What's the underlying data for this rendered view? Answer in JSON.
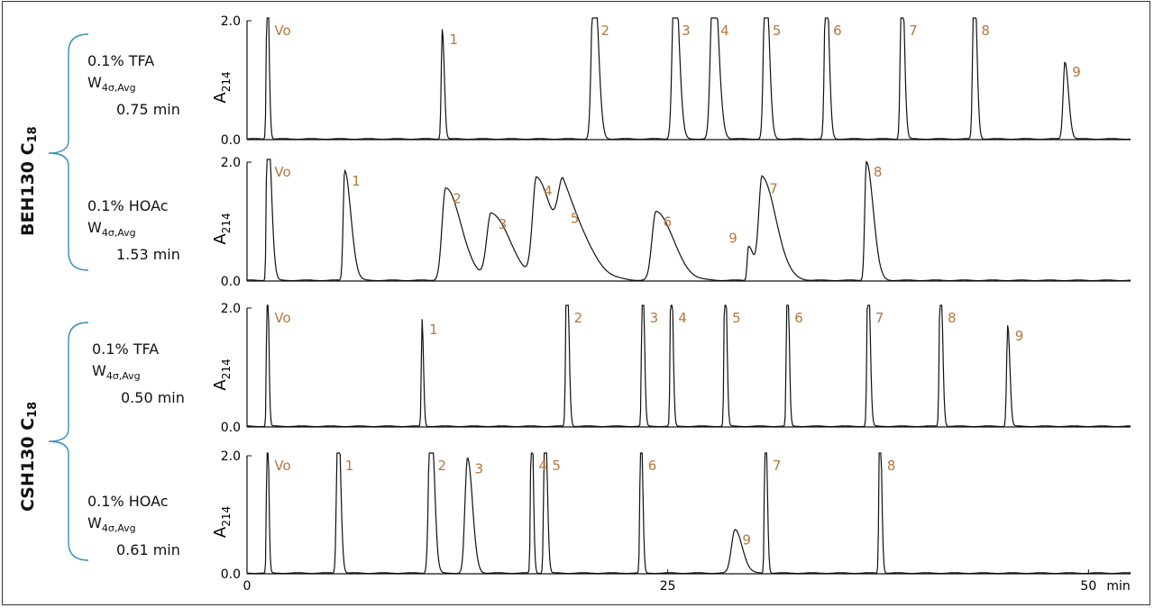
{
  "colors": {
    "trace": "#111111",
    "peak_label": "#b8763d",
    "brace": "#3b8fb5",
    "axis": "#111111"
  },
  "groups": [
    {
      "column": "BEH130 C",
      "subscript": "18"
    },
    {
      "column": "CSH130 C",
      "subscript": "18"
    }
  ],
  "conditions": [
    {
      "modifier": "0.1% TFA",
      "w_label": "W",
      "w_sub": "4σ,Avg",
      "width": "0.75 min"
    },
    {
      "modifier": "0.1% HOAc",
      "w_label": "W",
      "w_sub": "4σ,Avg",
      "width": "1.53 min"
    },
    {
      "modifier": "0.1% TFA",
      "w_label": "W",
      "w_sub": "4σ,Avg",
      "width": "0.50 min"
    },
    {
      "modifier": "0.1% HOAc",
      "w_label": "W",
      "w_sub": "4σ,Avg",
      "width": "0.61 min"
    }
  ],
  "chart_data": {
    "type": "line",
    "x_axis": {
      "xlim": [
        0,
        52.5
      ],
      "ticks": [
        "0",
        "25",
        "50"
      ],
      "unit_label": "min"
    },
    "y_axis": {
      "label": "A",
      "label_sub": "214",
      "ylim": [
        0,
        2.0
      ],
      "tick_labels": [
        "0.0",
        "2.0"
      ]
    },
    "panels": [
      {
        "name": "BEH130 C18 · 0.1% TFA",
        "peaks": [
          {
            "label": "Vo",
            "t": 1.2,
            "h": 3.0,
            "w": 0.12
          },
          {
            "label": "1",
            "t": 11.6,
            "h": 1.85,
            "w": 0.14
          },
          {
            "label": "2",
            "t": 20.6,
            "h": 3.0,
            "w": 0.3
          },
          {
            "label": "3",
            "t": 25.4,
            "h": 3.0,
            "w": 0.3
          },
          {
            "label": "4",
            "t": 27.7,
            "h": 3.0,
            "w": 0.35
          },
          {
            "label": "5",
            "t": 30.8,
            "h": 3.0,
            "w": 0.25
          },
          {
            "label": "6",
            "t": 34.4,
            "h": 3.0,
            "w": 0.2
          },
          {
            "label": "7",
            "t": 38.9,
            "h": 3.0,
            "w": 0.18
          },
          {
            "label": "8",
            "t": 43.2,
            "h": 3.0,
            "w": 0.18
          },
          {
            "label": "9",
            "t": 48.6,
            "h": 1.3,
            "w": 0.25
          }
        ]
      },
      {
        "name": "BEH130 C18 · 0.1% HOAc",
        "peaks": [
          {
            "label": "Vo",
            "t": 1.2,
            "h": 3.0,
            "w": 0.12
          },
          {
            "label": "1",
            "t": 5.8,
            "h": 1.85,
            "w": 0.2
          },
          {
            "label": "2",
            "t": 11.8,
            "h": 1.55,
            "w": 0.5
          },
          {
            "label": "3",
            "t": 14.5,
            "h": 1.12,
            "w": 0.6
          },
          {
            "label": "4",
            "t": 17.2,
            "h": 1.68,
            "w": 0.55
          },
          {
            "label": "5",
            "t": 18.8,
            "h": 1.22,
            "w": 0.7
          },
          {
            "label": "6",
            "t": 24.3,
            "h": 1.16,
            "w": 0.55
          },
          {
            "label": "9",
            "t": 29.8,
            "h": 0.58,
            "w": 0.18
          },
          {
            "label": "7",
            "t": 30.6,
            "h": 1.72,
            "w": 0.45
          },
          {
            "label": "8",
            "t": 36.8,
            "h": 2.0,
            "w": 0.22
          }
        ]
      },
      {
        "name": "CSH130 C18 · 0.1% TFA",
        "peaks": [
          {
            "label": "Vo",
            "t": 1.2,
            "h": 3.0,
            "w": 0.1
          },
          {
            "label": "1",
            "t": 10.4,
            "h": 1.8,
            "w": 0.1
          },
          {
            "label": "2",
            "t": 19.0,
            "h": 3.0,
            "w": 0.14
          },
          {
            "label": "3",
            "t": 23.5,
            "h": 3.0,
            "w": 0.12
          },
          {
            "label": "4",
            "t": 25.2,
            "h": 3.0,
            "w": 0.12
          },
          {
            "label": "5",
            "t": 28.4,
            "h": 3.0,
            "w": 0.12
          },
          {
            "label": "6",
            "t": 32.1,
            "h": 3.0,
            "w": 0.12
          },
          {
            "label": "7",
            "t": 36.9,
            "h": 3.0,
            "w": 0.14
          },
          {
            "label": "8",
            "t": 41.2,
            "h": 3.0,
            "w": 0.14
          },
          {
            "label": "9",
            "t": 45.2,
            "h": 1.7,
            "w": 0.15
          }
        ]
      },
      {
        "name": "CSH130 C18 · 0.1% HOAc",
        "peaks": [
          {
            "label": "Vo",
            "t": 1.2,
            "h": 3.0,
            "w": 0.1
          },
          {
            "label": "1",
            "t": 5.4,
            "h": 3.0,
            "w": 0.18
          },
          {
            "label": "2",
            "t": 10.9,
            "h": 3.0,
            "w": 0.25
          },
          {
            "label": "3",
            "t": 13.1,
            "h": 1.95,
            "w": 0.35
          },
          {
            "label": "4",
            "t": 16.9,
            "h": 3.0,
            "w": 0.12
          },
          {
            "label": "5",
            "t": 17.7,
            "h": 3.0,
            "w": 0.15
          },
          {
            "label": "6",
            "t": 23.4,
            "h": 3.0,
            "w": 0.12
          },
          {
            "label": "9",
            "t": 29.0,
            "h": 0.74,
            "w": 0.5
          },
          {
            "label": "7",
            "t": 30.8,
            "h": 3.0,
            "w": 0.12
          },
          {
            "label": "8",
            "t": 37.6,
            "h": 3.0,
            "w": 0.12
          }
        ]
      }
    ]
  }
}
